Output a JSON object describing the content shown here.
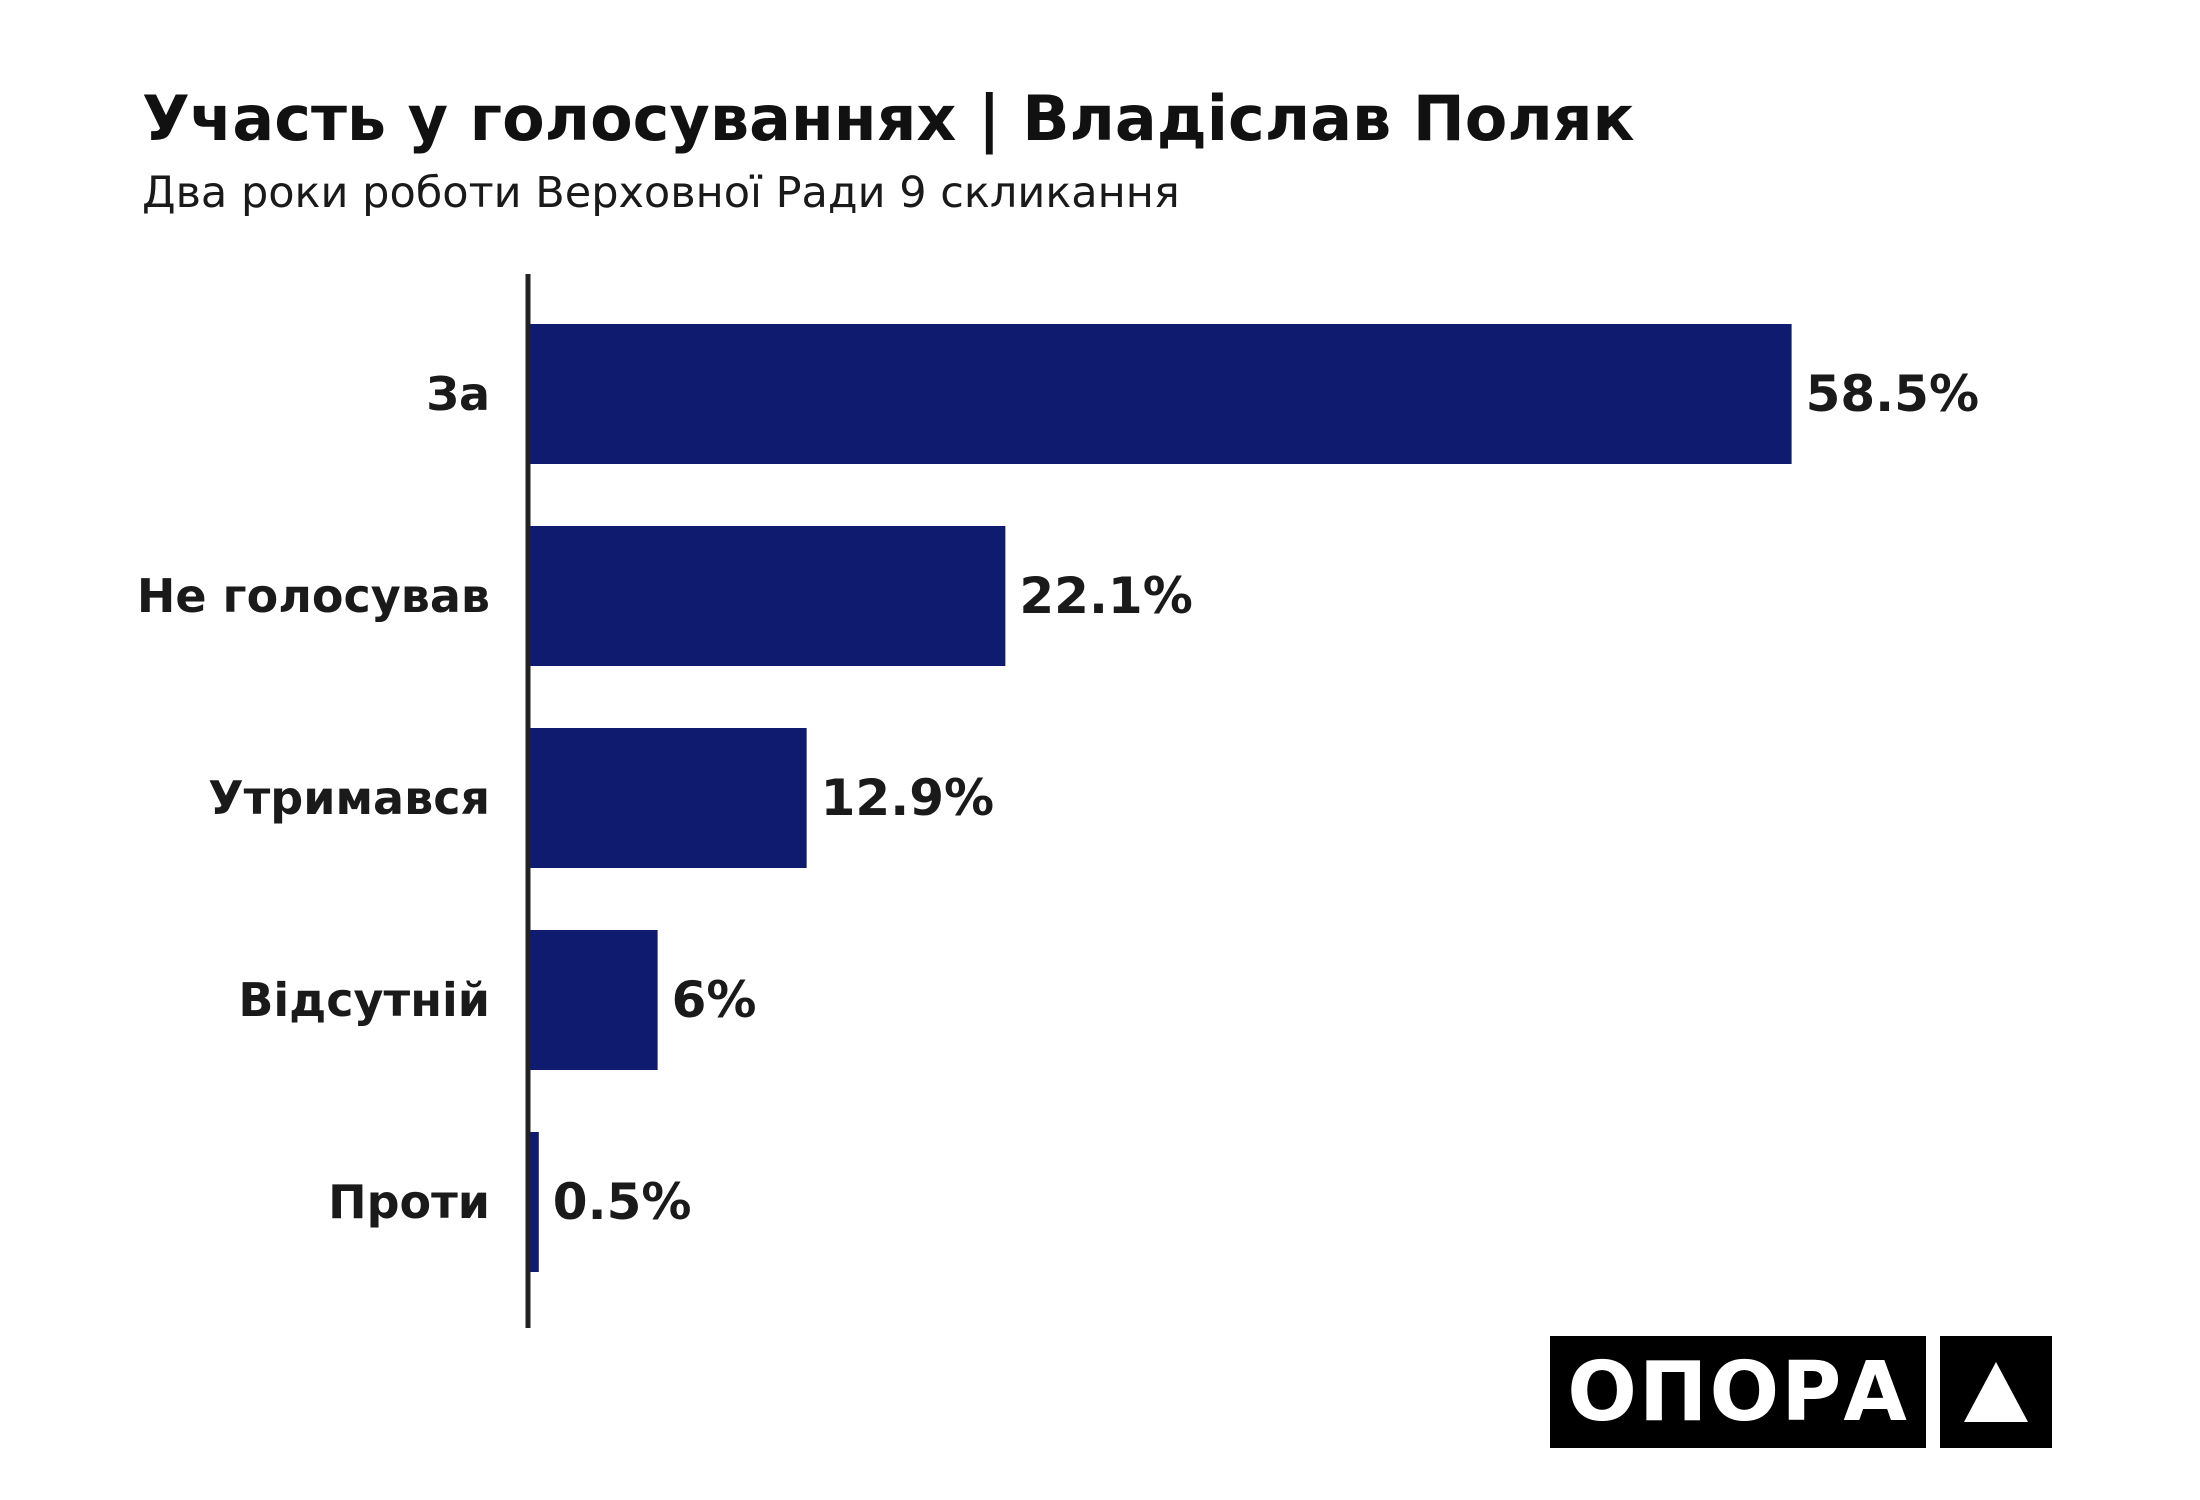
{
  "chart_data": {
    "type": "bar",
    "orientation": "horizontal",
    "title": "Участь у голосуваннях | Владіслав Поляк",
    "subtitle": "Два роки роботи Верховної Ради 9 скликання",
    "categories": [
      "За",
      "Не голосував",
      "Утримався",
      "Відсутній",
      "Проти"
    ],
    "values": [
      58.5,
      22.1,
      12.9,
      6,
      0.5
    ],
    "value_labels": [
      "58.5%",
      "22.1%",
      "12.9%",
      "6%",
      "0.5%"
    ],
    "xlim": [
      0,
      67
    ],
    "grid": false,
    "legend": "none",
    "bar_color": "#0e1b6e"
  },
  "brand": {
    "logo_text": "ОПОРА",
    "logo_mark_icon": "triangle-up-icon"
  },
  "colors": {
    "bar": "#0e1b6e",
    "axis": "#222222",
    "text": "#1a1a1a",
    "logo_bg": "#000000",
    "logo_fg": "#ffffff"
  }
}
